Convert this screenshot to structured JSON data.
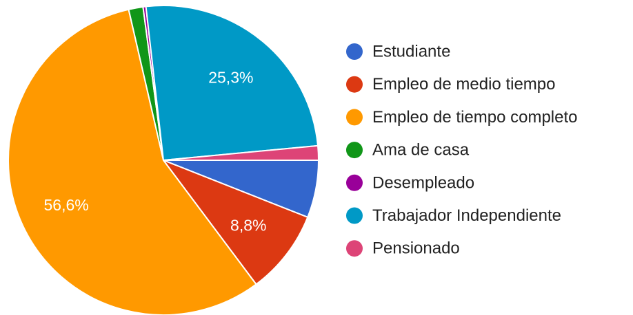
{
  "chart_data": {
    "type": "pie",
    "categories": [
      "Estudiante",
      "Empleo de medio tiempo",
      "Empleo de tiempo completo",
      "Ama de casa",
      "Desempleado",
      "Trabajador Independiente",
      "Pensionado"
    ],
    "values": [
      6.0,
      8.8,
      56.6,
      1.5,
      0.3,
      25.3,
      1.5
    ],
    "value_labels": [
      null,
      "8,8%",
      "56,6%",
      null,
      null,
      "25,3%",
      null
    ],
    "colors": [
      "#3366cc",
      "#dc3912",
      "#ff9900",
      "#109618",
      "#990099",
      "#0099c6",
      "#dd4477"
    ],
    "legend": "right"
  }
}
